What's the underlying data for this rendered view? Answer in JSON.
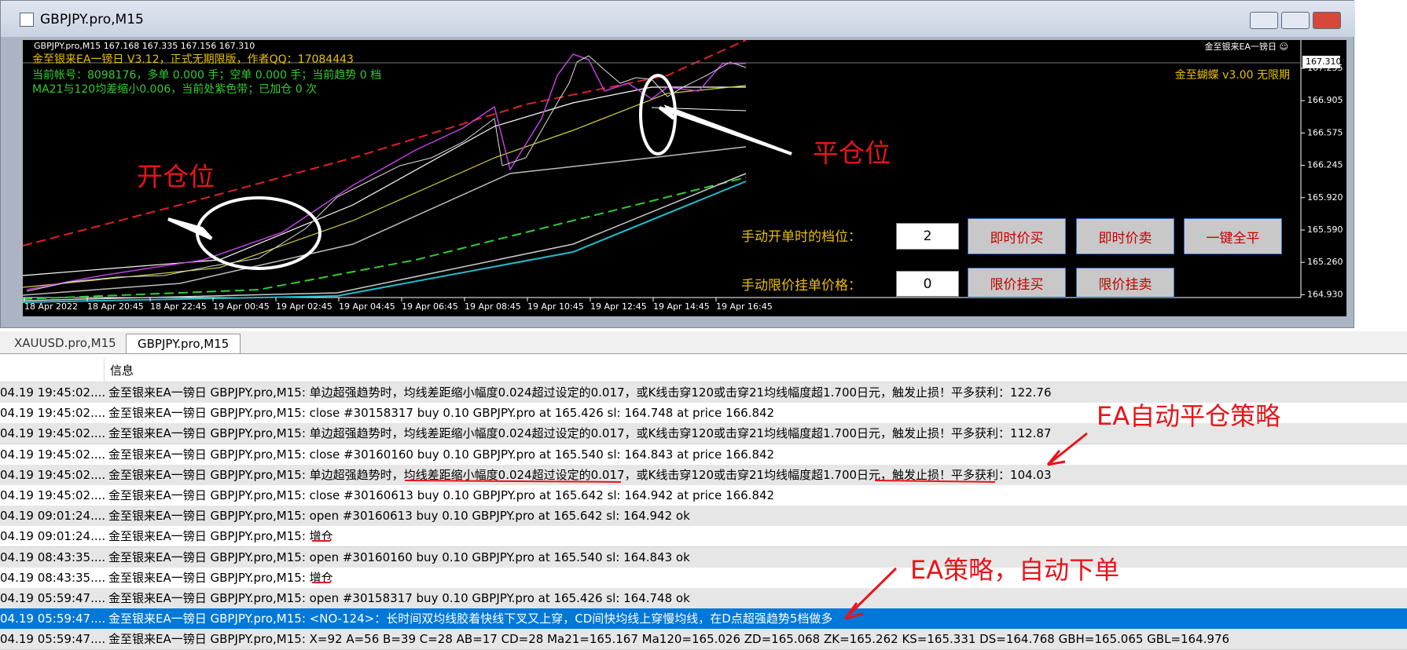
{
  "window": {
    "title": "GBPJPY.pro,M15"
  },
  "chart": {
    "header": "GBPJPY.pro,M15  167.168 167.335 167.156 167.310",
    "info_lines": [
      "金至银来EA一镑日 V3.12，正式无期限版，作者QQ：17084443",
      "当前帐号：8098176，多单 0.000 手；空单 0.000 手；当前趋势 0 档",
      "MA21与120均差缩小0.006，当前处紫色带；已加仓 0 次"
    ],
    "ea_name": "金至银来EA一镑日 ☺",
    "indicator_label": "金至蝴蝶 v3.00 无限期",
    "current_price": "167.310",
    "price_labels": [
      "167.235",
      "166.905",
      "166.575",
      "166.245",
      "165.920",
      "165.590",
      "165.260",
      "164.930"
    ],
    "time_labels": [
      "18 Apr 2022",
      "18 Apr 20:45",
      "18 Apr 22:45",
      "19 Apr 00:45",
      "19 Apr 02:45",
      "19 Apr 04:45",
      "19 Apr 06:45",
      "19 Apr 08:45",
      "19 Apr 10:45",
      "19 Apr 12:45",
      "19 Apr 14:45",
      "19 Apr 16:45"
    ],
    "open_annotation": "开仓位",
    "close_annotation": "平仓位"
  },
  "panel": {
    "level_label": "手动开单时的档位：",
    "level_value": "2",
    "limit_label": "手动限价挂单价格：",
    "limit_value": "0",
    "buttons": [
      "即时价买",
      "即时价卖",
      "一键全平",
      "限价挂买",
      "限价挂卖"
    ]
  },
  "tabs": [
    "XAUUSD.pro,M15",
    "GBPJPY.pro,M15"
  ],
  "log": {
    "header": "信息",
    "rows": [
      [
        "04.19 19:45:02....",
        "金至银来EA一镑日 GBPJPY.pro,M15: 单边超强趋势时，均线差距缩小幅度0.024超过设定的0.017，或K线击穿120或击穿21均线幅度超1.700日元，触发止损！平多获利：122.76"
      ],
      [
        "04.19 19:45:02....",
        "金至银来EA一镑日 GBPJPY.pro,M15: close #30158317 buy 0.10 GBPJPY.pro at 165.426 sl: 164.748 at price 166.842"
      ],
      [
        "04.19 19:45:02....",
        "金至银来EA一镑日 GBPJPY.pro,M15: 单边超强趋势时，均线差距缩小幅度0.024超过设定的0.017，或K线击穿120或击穿21均线幅度超1.700日元，触发止损！平多获利：112.87"
      ],
      [
        "04.19 19:45:02....",
        "金至银来EA一镑日 GBPJPY.pro,M15: close #30160160 buy 0.10 GBPJPY.pro at 165.540 sl: 164.843 at price 166.842"
      ],
      [
        "04.19 19:45:02....",
        "金至银来EA一镑日 GBPJPY.pro,M15: 单边超强趋势时，均线差距缩小幅度0.024超过设定的0.017，或K线击穿120或击穿21均线幅度超1.700日元，触发止损！平多获利：104.03"
      ],
      [
        "04.19 19:45:02....",
        "金至银来EA一镑日 GBPJPY.pro,M15: close #30160613 buy 0.10 GBPJPY.pro at 165.642 sl: 164.942 at price 166.842"
      ],
      [
        "04.19 09:01:24....",
        "金至银来EA一镑日 GBPJPY.pro,M15: open #30160613 buy 0.10 GBPJPY.pro at 165.642 sl: 164.942 ok"
      ],
      [
        "04.19 09:01:24....",
        "金至银来EA一镑日 GBPJPY.pro,M15: 增仓"
      ],
      [
        "04.19 08:43:35....",
        "金至银来EA一镑日 GBPJPY.pro,M15: open #30160160 buy 0.10 GBPJPY.pro at 165.540 sl: 164.843 ok"
      ],
      [
        "04.19 08:43:35....",
        "金至银来EA一镑日 GBPJPY.pro,M15: 增仓"
      ],
      [
        "04.19 05:59:47....",
        "金至银来EA一镑日 GBPJPY.pro,M15: open #30158317 buy 0.10 GBPJPY.pro at 165.426 sl: 164.748 ok"
      ],
      [
        "04.19 05:59:47....",
        "金至银来EA一镑日 GBPJPY.pro,M15: <NO-124>：长时间双均线胶着快线下叉又上穿，CD间快均线上穿慢均线，在D点超强趋势5档做多"
      ],
      [
        "04.19 05:59:47....",
        "金至银来EA一镑日 GBPJPY.pro,M15: X=92 A=56 B=39 C=28 AB=17 CD=28 Ma21=165.167 Ma120=165.026 ZD=165.068 ZK=165.262 KS=165.331 DS=164.768 GBH=165.065 GBL=164.976"
      ]
    ],
    "selected_row": 11
  },
  "annotations": {
    "auto_close": "EA自动平仓策略",
    "auto_order": "EA策略，自动下单"
  }
}
